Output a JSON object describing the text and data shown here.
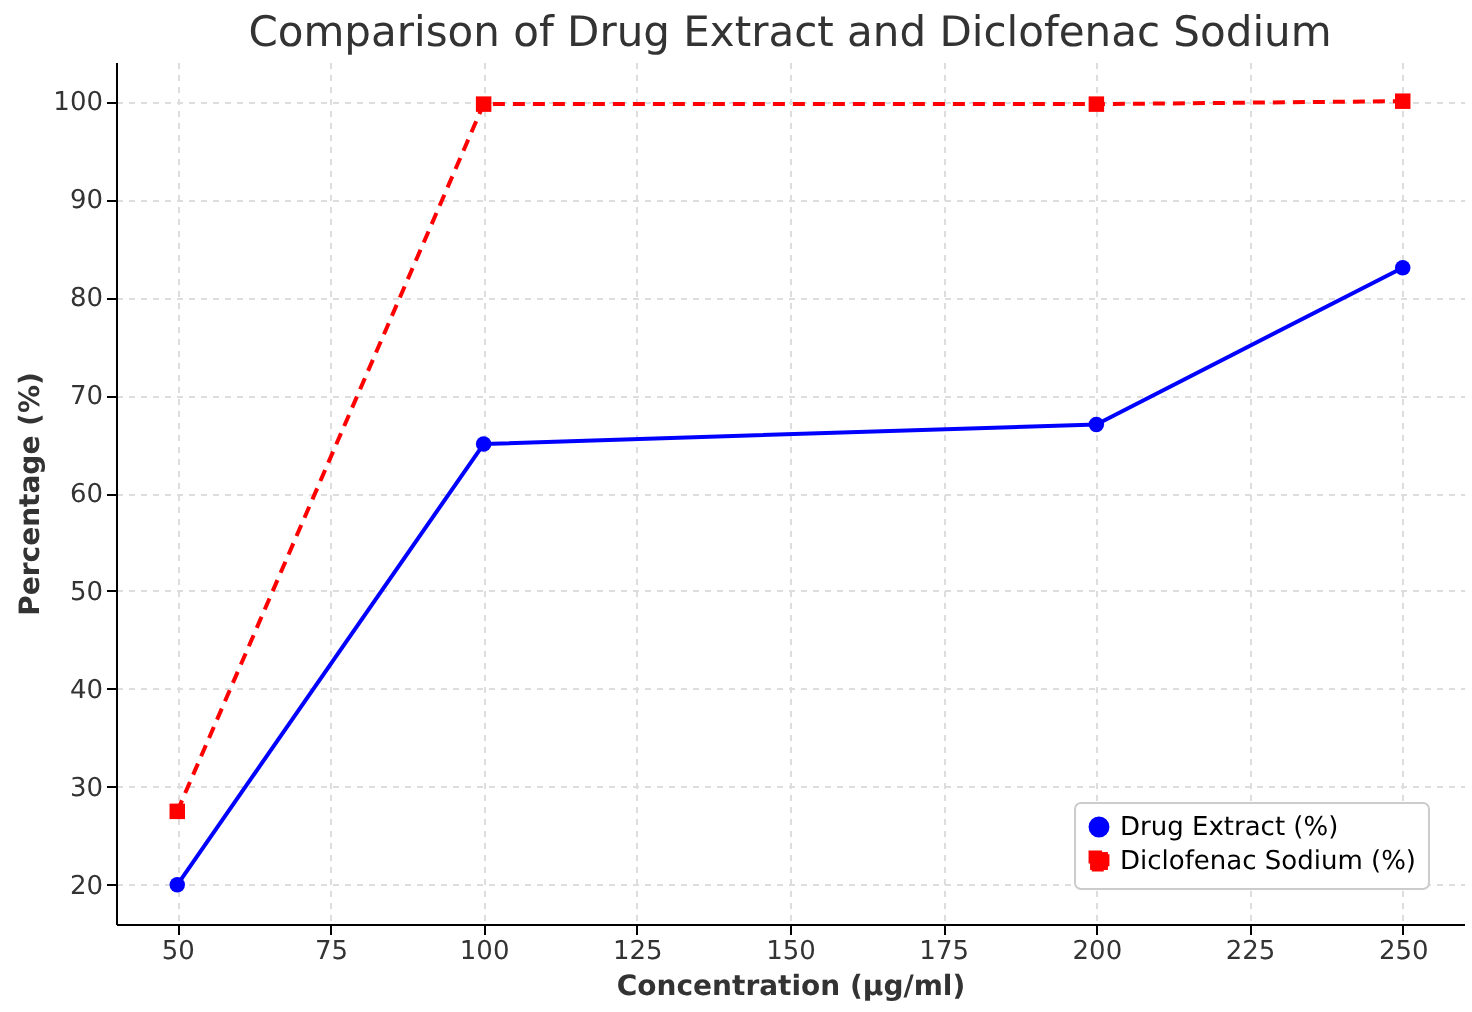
{
  "chart_data": {
    "type": "line",
    "title": "Comparison of Drug Extract and Diclofenac Sodium",
    "xlabel": "Concentration (µg/ml)",
    "ylabel": "Percentage (%)",
    "x": [
      50,
      100,
      200,
      250
    ],
    "series": [
      {
        "name": "Drug Extract (%)",
        "color": "#0000ff",
        "values": [
          20,
          65,
          67,
          83
        ],
        "marker": "circle",
        "line_style": "solid"
      },
      {
        "name": "Diclofenac Sodium (%)",
        "color": "#ff0000",
        "values": [
          27.5,
          99.7,
          99.7,
          100
        ],
        "marker": "square",
        "line_style": "dashed"
      }
    ],
    "xlim": [
      40,
      260
    ],
    "xticks": [
      50,
      75,
      100,
      125,
      150,
      175,
      200,
      225,
      250
    ],
    "ylim": [
      16,
      104
    ],
    "yticks": [
      20,
      30,
      40,
      50,
      60,
      70,
      80,
      90,
      100
    ],
    "grid": true,
    "legend": "bottom right"
  }
}
